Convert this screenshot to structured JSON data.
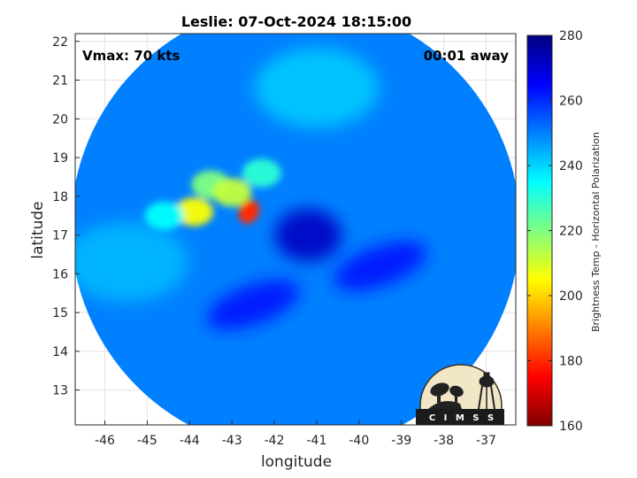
{
  "chart_data": {
    "type": "heatmap",
    "title": "Leslie: 07-Oct-2024 18:15:00",
    "annotations": {
      "vmax": "Vmax: 70 kts",
      "time_offset": "00:01 away"
    },
    "xlabel": "longitude",
    "ylabel": "latitude",
    "xlim": [
      -46.7,
      -36.3
    ],
    "ylim": [
      12.1,
      22.2
    ],
    "xticks": [
      -46,
      -45,
      -44,
      -43,
      -42,
      -41,
      -40,
      -39,
      -38,
      -37
    ],
    "yticks": [
      13,
      14,
      15,
      16,
      17,
      18,
      19,
      20,
      21,
      22
    ],
    "grid": true,
    "colorbar": {
      "label": "Brightness Temp - Horizontal Polarization",
      "range": [
        160,
        280
      ],
      "ticks": [
        160,
        180,
        200,
        220,
        240,
        260,
        280
      ],
      "colormap": "jet",
      "placement": "right"
    },
    "swath": {
      "shape": "circle",
      "center_lon": -41.5,
      "center_lat": 17.2,
      "radius_deg": 5.3
    },
    "storm_center": {
      "lon": -41.2,
      "lat": 17.0,
      "tb": 272
    },
    "background_tb": 250,
    "features": [
      {
        "kind": "convective_band",
        "lon": -43.9,
        "lat": 17.6,
        "tb": 205
      },
      {
        "kind": "convective_band",
        "lon": -43.5,
        "lat": 18.3,
        "tb": 220
      },
      {
        "kind": "convective_band",
        "lon": -43.0,
        "lat": 18.1,
        "tb": 212
      },
      {
        "kind": "convective_core",
        "lon": -42.6,
        "lat": 17.6,
        "tb": 180
      },
      {
        "kind": "convective_band",
        "lon": -42.3,
        "lat": 18.6,
        "tb": 230
      },
      {
        "kind": "convective_band",
        "lon": -44.6,
        "lat": 17.5,
        "tb": 235
      },
      {
        "kind": "cold_spiral_band",
        "lon": -42.5,
        "lat": 15.2,
        "tb": 262
      },
      {
        "kind": "cold_spiral_band",
        "lon": -39.5,
        "lat": 16.2,
        "tb": 262
      },
      {
        "kind": "warm_outer_region",
        "lon": -41.0,
        "lat": 20.8,
        "tb": 242
      },
      {
        "kind": "warm_outer_region",
        "lon": -45.5,
        "lat": 16.3,
        "tb": 244
      }
    ]
  },
  "logo": {
    "text": "C I M S S",
    "name": "CIMSS"
  }
}
